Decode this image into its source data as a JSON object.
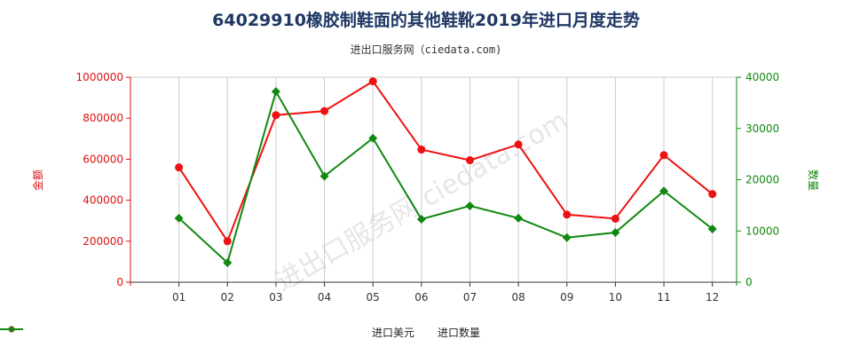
{
  "title": "64029910橡胶制鞋面的其他鞋靴2019年进口月度走势",
  "subtitle": "进出口服务网（ciedata.com)",
  "watermark": "进出口服务网 ciedata.com",
  "chart_data": {
    "type": "line",
    "categories": [
      "01",
      "02",
      "03",
      "04",
      "05",
      "06",
      "07",
      "08",
      "09",
      "10",
      "11",
      "12"
    ],
    "y_left": {
      "label": "金额",
      "ylim": [
        0,
        1000000
      ],
      "ticks": [
        "0",
        "200000",
        "400000",
        "600000",
        "800000",
        "1000000"
      ],
      "color": "#dd1111"
    },
    "y_right": {
      "label": "数量",
      "ylim": [
        0,
        40000
      ],
      "ticks": [
        "0",
        "10000",
        "20000",
        "30000",
        "40000"
      ],
      "color": "#118811"
    },
    "series": [
      {
        "name": "进口美元",
        "axis": "left",
        "color": "#ee1111",
        "values": [
          560000,
          200000,
          815000,
          835000,
          980000,
          647000,
          595000,
          672000,
          330000,
          310000,
          620000,
          430000
        ]
      },
      {
        "name": "进口数量",
        "axis": "right",
        "color": "#118811",
        "values": [
          12500,
          3800,
          37200,
          20700,
          28100,
          12300,
          14900,
          12500,
          8700,
          9700,
          17800,
          10400
        ]
      }
    ],
    "grid": "vertical",
    "legend": "bottom"
  }
}
